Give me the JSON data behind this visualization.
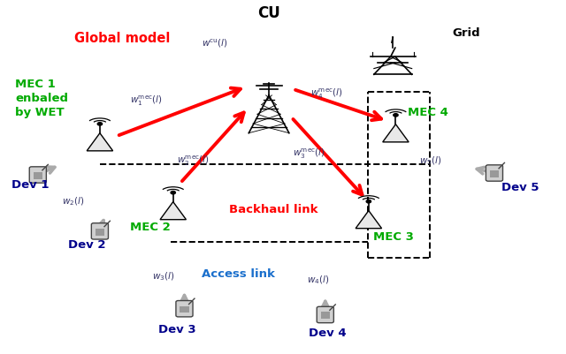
{
  "bg_color": "#ffffff",
  "mec_color": "#00aa00",
  "dev_color": "#00008B",
  "red_color": "#ff0000",
  "cu_label": "CU",
  "grid_label": "Grid",
  "global_model_label": "Global model",
  "backhaul_label": "Backhaul link",
  "access_label": "Access link",
  "mec1_label": "MEC 1\nenbaled\nby WET",
  "mec2_label": "MEC 2",
  "mec3_label": "MEC 3",
  "mec4_label": "MEC 4",
  "dev1_label": "Dev 1",
  "dev2_label": "Dev 2",
  "dev3_label": "Dev 3",
  "dev4_label": "Dev 4",
  "dev5_label": "Dev 5"
}
